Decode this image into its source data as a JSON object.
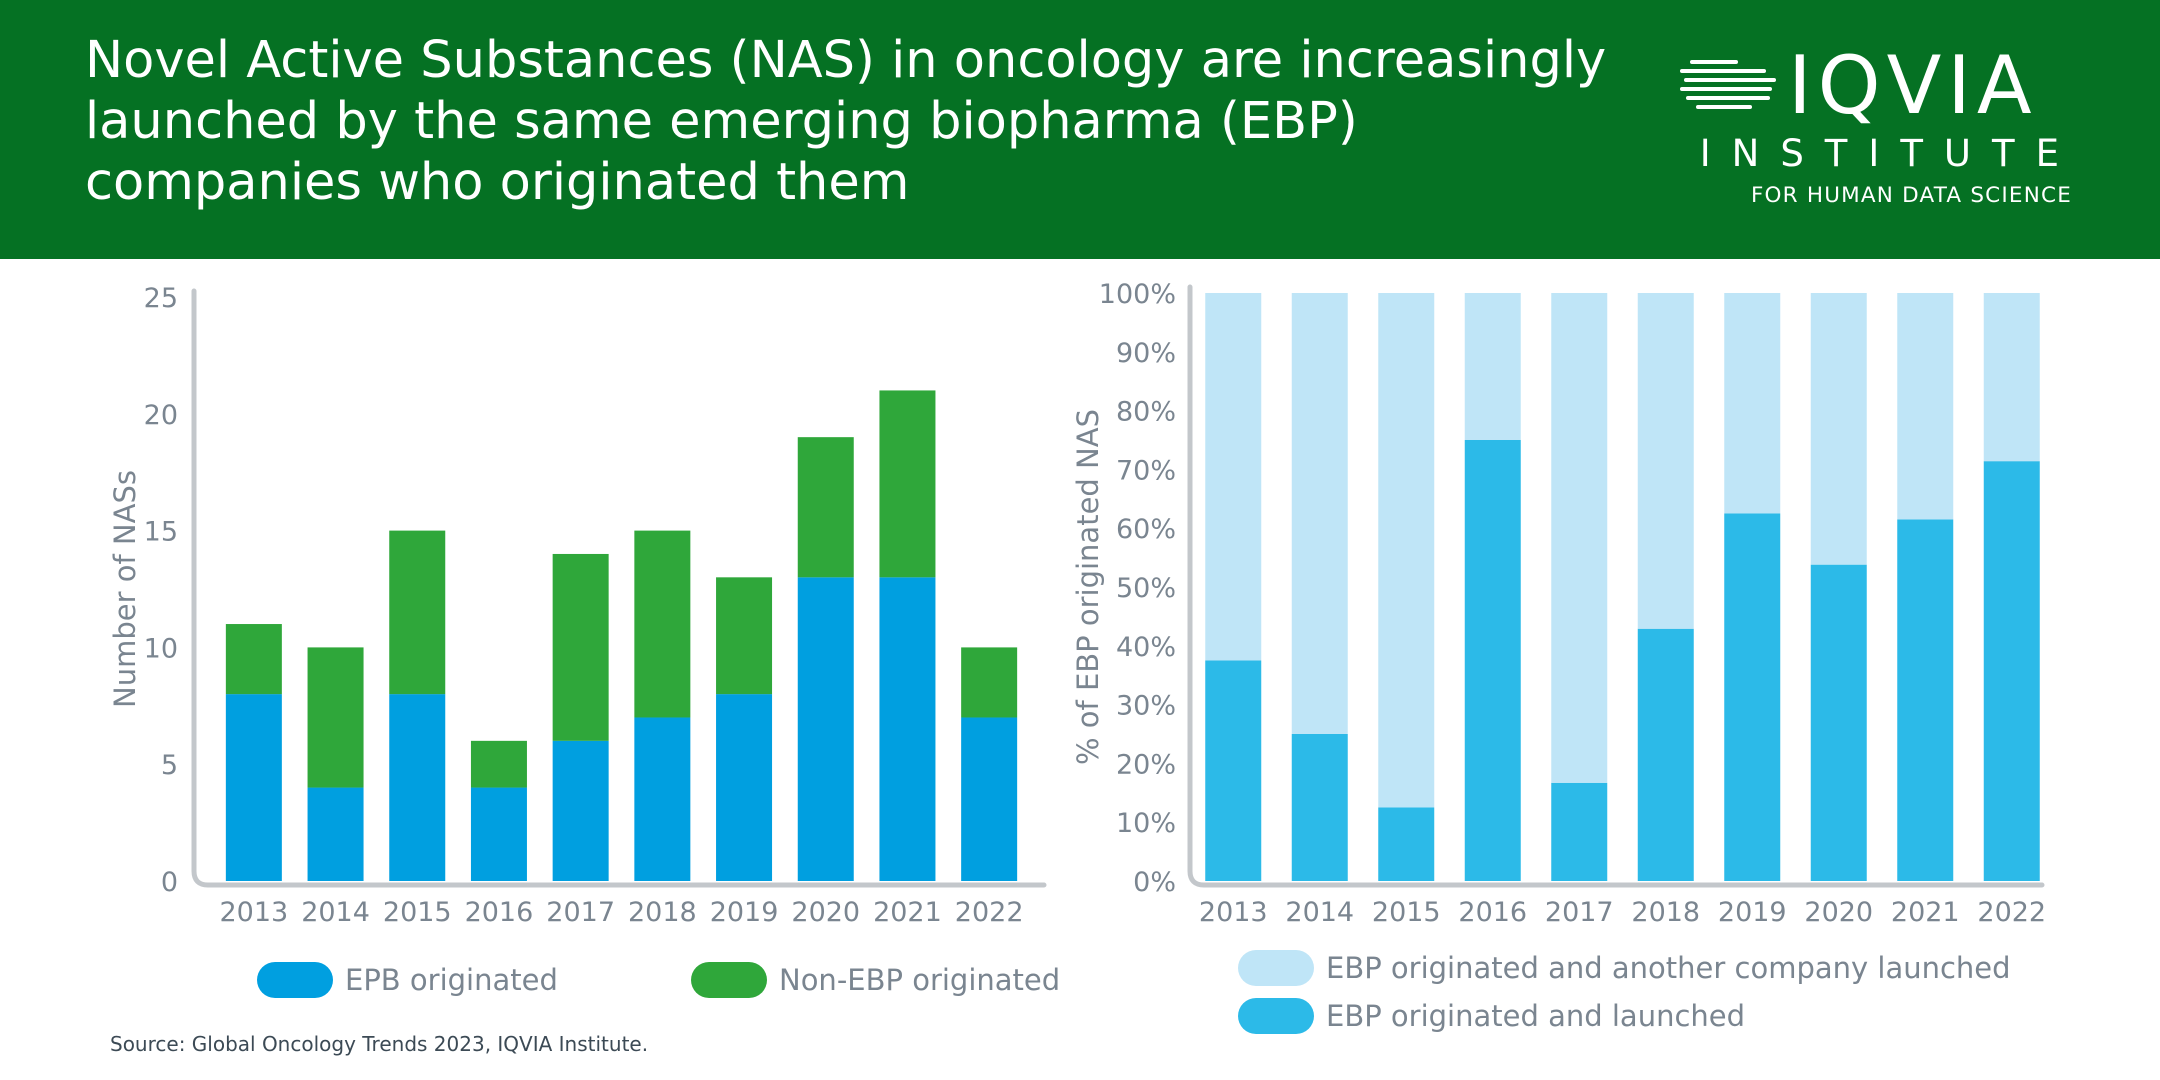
{
  "header": {
    "title": "Novel Active Substances (NAS) in oncology are increasingly launched by the same emerging biopharma (EBP) companies who originated them",
    "bg_color": "#057123"
  },
  "logo": {
    "word": "IQVIA",
    "institute": "INSTITUTE",
    "subtitle": "FOR HUMAN DATA SCIENCE",
    "icon": "iqvia-lines-icon"
  },
  "source": "Source: Global Oncology Trends 2023, IQVIA Institute.",
  "chart_data": [
    {
      "type": "bar",
      "stacked": true,
      "title": "",
      "xlabel": "",
      "ylabel": "Number of NASs",
      "ylim": [
        0,
        25
      ],
      "yticks": [
        "0",
        "5",
        "10",
        "15",
        "20",
        "25"
      ],
      "categories": [
        "2013",
        "2014",
        "2015",
        "2016",
        "2017",
        "2018",
        "2019",
        "2020",
        "2021",
        "2022"
      ],
      "series": [
        {
          "name": "EPB originated",
          "color": "#009fe0",
          "values": [
            8,
            4,
            8,
            4,
            6,
            7,
            8,
            13,
            13,
            7
          ]
        },
        {
          "name": "Non-EBP originated",
          "color": "#2fa73a",
          "values": [
            3,
            6,
            7,
            2,
            8,
            8,
            5,
            6,
            8,
            3
          ]
        }
      ],
      "legend_position": "bottom"
    },
    {
      "type": "bar",
      "stacked": true,
      "title": "",
      "xlabel": "",
      "ylabel": "% of EBP originated NAS",
      "ylim": [
        0,
        100
      ],
      "yticks": [
        "0%",
        "10%",
        "20%",
        "30%",
        "40%",
        "50%",
        "60%",
        "70%",
        "80%",
        "90%",
        "100%"
      ],
      "categories": [
        "2013",
        "2014",
        "2015",
        "2016",
        "2017",
        "2018",
        "2019",
        "2020",
        "2021",
        "2022"
      ],
      "series": [
        {
          "name": "EBP originated and launched",
          "color": "#2cbae8",
          "values": [
            37.5,
            25,
            12.5,
            75,
            16.7,
            42.9,
            62.5,
            53.8,
            61.5,
            71.4
          ]
        },
        {
          "name": "EBP originated and another company launched",
          "color": "#bfe5f7",
          "values": [
            62.5,
            75,
            87.5,
            25,
            83.3,
            57.1,
            37.5,
            46.2,
            38.5,
            28.6
          ]
        }
      ],
      "legend_position": "bottom"
    }
  ]
}
